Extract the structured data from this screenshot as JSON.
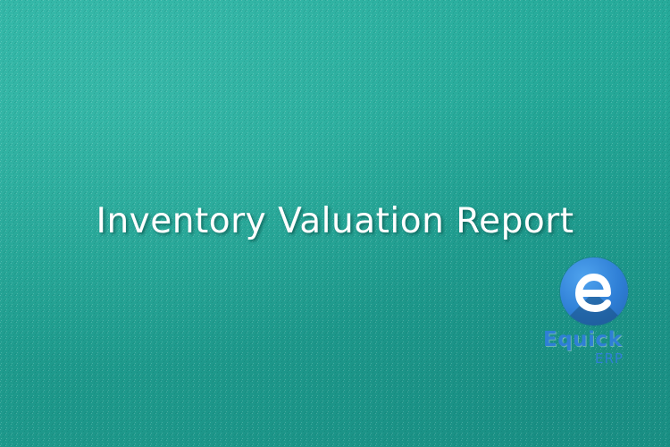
{
  "banner": {
    "title": "Inventory Valuation Report",
    "background_color": "#25a898",
    "title_color": "#ffffff"
  },
  "logo": {
    "icon": "equick-e-logo-icon",
    "word": "Equick",
    "sub": "ERP",
    "color": "#2f7fd6"
  }
}
